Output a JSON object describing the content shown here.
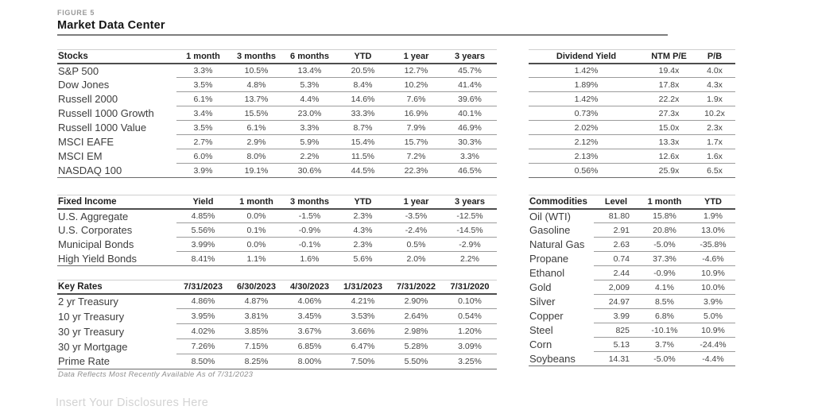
{
  "figure_label": "FIGURE 5",
  "title": "Market Data Center",
  "footnote": "Data Reflects Most Recently Available As of 7/31/2023",
  "disclosure_placeholder": "Insert Your Disclosures Here",
  "tables": {
    "stocks": {
      "headers": [
        "Stocks",
        "1 month",
        "3 months",
        "6 months",
        "YTD",
        "1 year",
        "3 years"
      ],
      "rows": [
        {
          "label": "S&P 500",
          "values": [
            "3.3%",
            "10.5%",
            "13.4%",
            "20.5%",
            "12.7%",
            "45.7%"
          ]
        },
        {
          "label": "Dow Jones",
          "values": [
            "3.5%",
            "4.8%",
            "5.3%",
            "8.4%",
            "10.2%",
            "41.4%"
          ]
        },
        {
          "label": "Russell 2000",
          "values": [
            "6.1%",
            "13.7%",
            "4.4%",
            "14.6%",
            "7.6%",
            "39.6%"
          ]
        },
        {
          "label": "Russell 1000 Growth",
          "values": [
            "3.4%",
            "15.5%",
            "23.0%",
            "33.3%",
            "16.9%",
            "40.1%"
          ]
        },
        {
          "label": "Russell 1000 Value",
          "values": [
            "3.5%",
            "6.1%",
            "3.3%",
            "8.7%",
            "7.9%",
            "46.9%"
          ]
        },
        {
          "label": "MSCI EAFE",
          "values": [
            "2.7%",
            "2.9%",
            "5.9%",
            "15.4%",
            "15.7%",
            "30.3%"
          ]
        },
        {
          "label": "MSCI EM",
          "values": [
            "6.0%",
            "8.0%",
            "2.2%",
            "11.5%",
            "7.2%",
            "3.3%"
          ]
        },
        {
          "label": "NASDAQ 100",
          "values": [
            "3.9%",
            "19.1%",
            "30.6%",
            "44.5%",
            "22.3%",
            "46.5%"
          ]
        }
      ]
    },
    "valuation": {
      "headers": [
        "Dividend Yield",
        "NTM P/E",
        "P/B"
      ],
      "rows": [
        [
          "1.42%",
          "19.4x",
          "4.0x"
        ],
        [
          "1.89%",
          "17.8x",
          "4.3x"
        ],
        [
          "1.42%",
          "22.2x",
          "1.9x"
        ],
        [
          "0.73%",
          "27.3x",
          "10.2x"
        ],
        [
          "2.02%",
          "15.0x",
          "2.3x"
        ],
        [
          "2.12%",
          "13.3x",
          "1.7x"
        ],
        [
          "2.13%",
          "12.6x",
          "1.6x"
        ],
        [
          "0.56%",
          "25.9x",
          "6.5x"
        ]
      ]
    },
    "fixed_income": {
      "headers": [
        "Fixed Income",
        "Yield",
        "1 month",
        "3 months",
        "YTD",
        "1 year",
        "3 years"
      ],
      "rows": [
        {
          "label": "U.S. Aggregate",
          "values": [
            "4.85%",
            "0.0%",
            "-1.5%",
            "2.3%",
            "-3.5%",
            "-12.5%"
          ]
        },
        {
          "label": "U.S. Corporates",
          "values": [
            "5.56%",
            "0.1%",
            "-0.9%",
            "4.3%",
            "-2.4%",
            "-14.5%"
          ]
        },
        {
          "label": "Municipal Bonds",
          "values": [
            "3.99%",
            "0.0%",
            "-0.1%",
            "2.3%",
            "0.5%",
            "-2.9%"
          ]
        },
        {
          "label": "High Yield Bonds",
          "values": [
            "8.41%",
            "1.1%",
            "1.6%",
            "5.6%",
            "2.0%",
            "2.2%"
          ]
        }
      ]
    },
    "key_rates": {
      "headers": [
        "Key Rates",
        "7/31/2023",
        "6/30/2023",
        "4/30/2023",
        "1/31/2023",
        "7/31/2022",
        "7/31/2020"
      ],
      "rows": [
        {
          "label": "2 yr Treasury",
          "values": [
            "4.86%",
            "4.87%",
            "4.06%",
            "4.21%",
            "2.90%",
            "0.10%"
          ]
        },
        {
          "label": "10 yr Treasury",
          "values": [
            "3.95%",
            "3.81%",
            "3.45%",
            "3.53%",
            "2.64%",
            "0.54%"
          ]
        },
        {
          "label": "30 yr Treasury",
          "values": [
            "4.02%",
            "3.85%",
            "3.67%",
            "3.66%",
            "2.98%",
            "1.20%"
          ]
        },
        {
          "label": "30 yr Mortgage",
          "values": [
            "7.26%",
            "7.15%",
            "6.85%",
            "6.47%",
            "5.28%",
            "3.09%"
          ]
        },
        {
          "label": "Prime Rate",
          "values": [
            "8.50%",
            "8.25%",
            "8.00%",
            "7.50%",
            "5.50%",
            "3.25%"
          ]
        }
      ]
    },
    "commodities": {
      "headers": [
        "Commodities",
        "Level",
        "1 month",
        "YTD"
      ],
      "rows": [
        {
          "label": "Oil (WTI)",
          "values": [
            "81.80",
            "15.8%",
            "1.9%"
          ]
        },
        {
          "label": "Gasoline",
          "values": [
            "2.91",
            "20.8%",
            "13.0%"
          ]
        },
        {
          "label": "Natural Gas",
          "values": [
            "2.63",
            "-5.0%",
            "-35.8%"
          ]
        },
        {
          "label": "Propane",
          "values": [
            "0.74",
            "37.3%",
            "-4.6%"
          ]
        },
        {
          "label": "Ethanol",
          "values": [
            "2.44",
            "-0.9%",
            "10.9%"
          ]
        },
        {
          "label": "Gold",
          "values": [
            "2,009",
            "4.1%",
            "10.0%"
          ]
        },
        {
          "label": "Silver",
          "values": [
            "24.97",
            "8.5%",
            "3.9%"
          ]
        },
        {
          "label": "Copper",
          "values": [
            "3.99",
            "6.8%",
            "5.0%"
          ]
        },
        {
          "label": "Steel",
          "values": [
            "825",
            "-10.1%",
            "10.9%"
          ]
        },
        {
          "label": "Corn",
          "values": [
            "5.13",
            "3.7%",
            "-24.4%"
          ]
        },
        {
          "label": "Soybeans",
          "values": [
            "14.31",
            "-5.0%",
            "-4.4%"
          ]
        }
      ]
    }
  }
}
